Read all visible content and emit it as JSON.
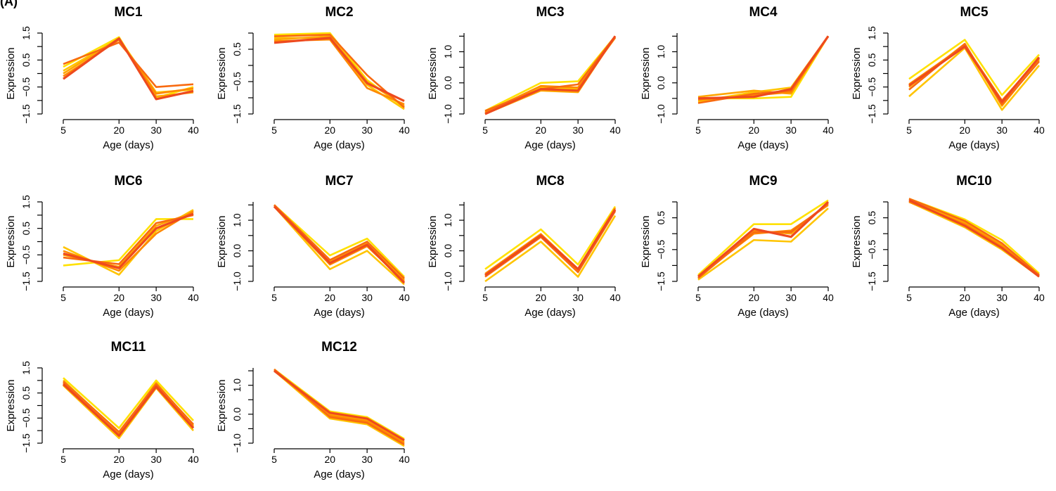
{
  "panel_label": "(A)",
  "line_colors": [
    "#FFE100",
    "#FFC400",
    "#FFA600",
    "#FF8800",
    "#F86A10",
    "#EE4A1E",
    "#E52D28"
  ],
  "axis_color": "#000000",
  "chart_data": [
    {
      "type": "line",
      "title": "MC1",
      "xlabel": "Age (days)",
      "ylabel": "Expression",
      "x": [
        5,
        20,
        30,
        40
      ],
      "xticks": [
        5,
        20,
        30,
        40
      ],
      "xlim": [
        5,
        40
      ],
      "ylim": [
        -1.5,
        1.5
      ],
      "yticks": [
        -1.5,
        -0.5,
        0.5,
        1.5
      ],
      "ytick_labels": [
        "−1.5",
        "−0.5",
        "0.5",
        "1.5"
      ],
      "series": [
        {
          "values": [
            0.25,
            1.35,
            -0.9,
            -0.5
          ]
        },
        {
          "values": [
            0.1,
            1.3,
            -0.7,
            -0.6
          ]
        },
        {
          "values": [
            0.0,
            1.3,
            -0.85,
            -0.7
          ]
        },
        {
          "values": [
            -0.1,
            1.25,
            -0.75,
            -0.55
          ]
        },
        {
          "values": [
            0.35,
            1.15,
            -0.5,
            -0.4
          ]
        },
        {
          "values": [
            -0.2,
            1.3,
            -0.95,
            -0.65
          ]
        }
      ]
    },
    {
      "type": "line",
      "title": "MC2",
      "xlabel": "Age (days)",
      "ylabel": "Expression",
      "x": [
        5,
        20,
        30,
        40
      ],
      "xticks": [
        5,
        20,
        30,
        40
      ],
      "xlim": [
        5,
        40
      ],
      "ylim": [
        -1.5,
        1.0
      ],
      "yticks": [
        -1.5,
        -0.5,
        0.5
      ],
      "ytick_labels": [
        "−1.5",
        "−0.5",
        "0.5"
      ],
      "series": [
        {
          "values": [
            0.95,
            1.0,
            -0.45,
            -1.3
          ]
        },
        {
          "values": [
            0.85,
            0.85,
            -0.6,
            -1.35
          ]
        },
        {
          "values": [
            0.8,
            0.9,
            -0.5,
            -1.25
          ]
        },
        {
          "values": [
            0.75,
            0.8,
            -0.7,
            -1.2
          ]
        },
        {
          "values": [
            0.9,
            0.95,
            -0.3,
            -1.3
          ]
        },
        {
          "values": [
            0.7,
            0.85,
            -0.55,
            -1.1
          ]
        }
      ]
    },
    {
      "type": "line",
      "title": "MC3",
      "xlabel": "Age (days)",
      "ylabel": "Expression",
      "x": [
        5,
        20,
        30,
        40
      ],
      "xticks": [
        5,
        20,
        30,
        40
      ],
      "xlim": [
        5,
        40
      ],
      "ylim": [
        -1.0,
        1.6
      ],
      "yticks": [
        -1.0,
        0.0,
        1.0
      ],
      "ytick_labels": [
        "−1.0",
        "0.0",
        "1.0"
      ],
      "series": [
        {
          "values": [
            -0.9,
            0.0,
            0.05,
            1.5
          ]
        },
        {
          "values": [
            -0.95,
            -0.15,
            -0.2,
            1.45
          ]
        },
        {
          "values": [
            -1.0,
            -0.25,
            -0.3,
            1.5
          ]
        },
        {
          "values": [
            -0.95,
            -0.1,
            -0.15,
            1.45
          ]
        },
        {
          "values": [
            -0.9,
            -0.2,
            -0.05,
            1.5
          ]
        },
        {
          "values": [
            -1.0,
            -0.2,
            -0.25,
            1.5
          ]
        }
      ]
    },
    {
      "type": "line",
      "title": "MC4",
      "xlabel": "Age (days)",
      "ylabel": "Expression",
      "x": [
        5,
        20,
        30,
        40
      ],
      "xticks": [
        5,
        20,
        30,
        40
      ],
      "xlim": [
        5,
        40
      ],
      "ylim": [
        -1.0,
        1.6
      ],
      "yticks": [
        -1.0,
        0.0,
        1.0
      ],
      "ytick_labels": [
        "−1.0",
        "0.0",
        "1.0"
      ],
      "series": [
        {
          "values": [
            -0.5,
            -0.5,
            -0.45,
            1.5
          ]
        },
        {
          "values": [
            -0.6,
            -0.3,
            -0.15,
            1.5
          ]
        },
        {
          "values": [
            -0.45,
            -0.25,
            -0.35,
            1.5
          ]
        },
        {
          "values": [
            -0.55,
            -0.4,
            -0.3,
            1.5
          ]
        },
        {
          "values": [
            -0.65,
            -0.35,
            -0.25,
            1.5
          ]
        },
        {
          "values": [
            -0.5,
            -0.45,
            -0.2,
            1.5
          ]
        }
      ]
    },
    {
      "type": "line",
      "title": "MC5",
      "xlabel": "Age (days)",
      "ylabel": "Expression",
      "x": [
        5,
        20,
        30,
        40
      ],
      "xticks": [
        5,
        20,
        30,
        40
      ],
      "xlim": [
        5,
        40
      ],
      "ylim": [
        -1.5,
        1.5
      ],
      "yticks": [
        -1.5,
        -0.5,
        0.5,
        1.5
      ],
      "ytick_labels": [
        "−1.5",
        "−0.5",
        "0.5",
        "1.5"
      ],
      "series": [
        {
          "values": [
            -0.2,
            1.25,
            -0.8,
            0.7
          ]
        },
        {
          "values": [
            -0.85,
            0.95,
            -1.35,
            0.3
          ]
        },
        {
          "values": [
            -0.5,
            1.1,
            -1.2,
            0.5
          ]
        },
        {
          "values": [
            -0.4,
            1.05,
            -1.0,
            0.55
          ]
        },
        {
          "values": [
            -0.6,
            1.1,
            -1.15,
            0.45
          ]
        },
        {
          "values": [
            -0.45,
            1.0,
            -1.05,
            0.6
          ]
        }
      ]
    },
    {
      "type": "line",
      "title": "MC6",
      "xlabel": "Age (days)",
      "ylabel": "Expression",
      "x": [
        5,
        20,
        30,
        40
      ],
      "xticks": [
        5,
        20,
        30,
        40
      ],
      "xlim": [
        5,
        40
      ],
      "ylim": [
        -1.5,
        1.5
      ],
      "yticks": [
        -1.5,
        -0.5,
        0.5,
        1.5
      ],
      "ytick_labels": [
        "−1.5",
        "−0.5",
        "0.5",
        "1.5"
      ],
      "series": [
        {
          "values": [
            -0.9,
            -0.7,
            0.85,
            0.85
          ]
        },
        {
          "values": [
            -0.2,
            -1.25,
            0.4,
            1.2
          ]
        },
        {
          "values": [
            -0.5,
            -0.95,
            0.6,
            1.1
          ]
        },
        {
          "values": [
            -0.35,
            -1.1,
            0.3,
            1.15
          ]
        },
        {
          "values": [
            -0.6,
            -0.85,
            0.7,
            1.0
          ]
        },
        {
          "values": [
            -0.45,
            -1.0,
            0.5,
            1.05
          ]
        }
      ]
    },
    {
      "type": "line",
      "title": "MC7",
      "xlabel": "Age (days)",
      "ylabel": "Expression",
      "x": [
        5,
        20,
        30,
        40
      ],
      "xticks": [
        5,
        20,
        30,
        40
      ],
      "xlim": [
        5,
        40
      ],
      "ylim": [
        -1.0,
        1.6
      ],
      "yticks": [
        -1.0,
        0.0,
        1.0
      ],
      "ytick_labels": [
        "−1.0",
        "0.0",
        "1.0"
      ],
      "series": [
        {
          "values": [
            1.5,
            -0.15,
            0.4,
            -0.85
          ]
        },
        {
          "values": [
            1.45,
            -0.6,
            0.0,
            -1.1
          ]
        },
        {
          "values": [
            1.5,
            -0.35,
            0.25,
            -0.95
          ]
        },
        {
          "values": [
            1.45,
            -0.45,
            0.15,
            -1.0
          ]
        },
        {
          "values": [
            1.5,
            -0.3,
            0.3,
            -0.9
          ]
        },
        {
          "values": [
            1.45,
            -0.4,
            0.2,
            -1.05
          ]
        }
      ]
    },
    {
      "type": "line",
      "title": "MC8",
      "xlabel": "Age (days)",
      "ylabel": "Expression",
      "x": [
        5,
        20,
        30,
        40
      ],
      "xticks": [
        5,
        20,
        30,
        40
      ],
      "xlim": [
        5,
        40
      ],
      "ylim": [
        -1.0,
        1.6
      ],
      "yticks": [
        -1.0,
        0.0,
        1.0
      ],
      "ytick_labels": [
        "−1.0",
        "0.0",
        "1.0"
      ],
      "series": [
        {
          "values": [
            -0.6,
            0.7,
            -0.45,
            1.45
          ]
        },
        {
          "values": [
            -1.0,
            0.3,
            -0.85,
            1.15
          ]
        },
        {
          "values": [
            -0.8,
            0.5,
            -0.65,
            1.35
          ]
        },
        {
          "values": [
            -0.75,
            0.55,
            -0.6,
            1.4
          ]
        },
        {
          "values": [
            -0.85,
            0.45,
            -0.7,
            1.3
          ]
        },
        {
          "values": [
            -0.8,
            0.5,
            -0.6,
            1.35
          ]
        }
      ]
    },
    {
      "type": "line",
      "title": "MC9",
      "xlabel": "Age (days)",
      "ylabel": "Expression",
      "x": [
        5,
        20,
        30,
        40
      ],
      "xticks": [
        5,
        20,
        30,
        40
      ],
      "xlim": [
        5,
        40
      ],
      "ylim": [
        -1.5,
        1.0
      ],
      "yticks": [
        -1.5,
        -0.5,
        0.5
      ],
      "ytick_labels": [
        "−1.5",
        "−0.5",
        "0.5"
      ],
      "series": [
        {
          "values": [
            -1.3,
            0.3,
            0.3,
            1.05
          ]
        },
        {
          "values": [
            -1.45,
            -0.2,
            -0.25,
            0.8
          ]
        },
        {
          "values": [
            -1.4,
            0.1,
            0.0,
            0.95
          ]
        },
        {
          "values": [
            -1.35,
            0.0,
            0.1,
            0.9
          ]
        },
        {
          "values": [
            -1.4,
            0.05,
            0.05,
            0.95
          ]
        },
        {
          "values": [
            -1.35,
            0.15,
            -0.1,
            1.0
          ]
        }
      ]
    },
    {
      "type": "line",
      "title": "MC10",
      "xlabel": "Age (days)",
      "ylabel": "Expression",
      "x": [
        5,
        20,
        30,
        40
      ],
      "xticks": [
        5,
        20,
        30,
        40
      ],
      "xlim": [
        5,
        40
      ],
      "ylim": [
        -1.5,
        1.0
      ],
      "yticks": [
        -1.5,
        -0.5,
        0.5
      ],
      "ytick_labels": [
        "−1.5",
        "−0.5",
        "0.5"
      ],
      "series": [
        {
          "values": [
            1.1,
            0.45,
            -0.2,
            -1.25
          ]
        },
        {
          "values": [
            1.0,
            0.2,
            -0.5,
            -1.35
          ]
        },
        {
          "values": [
            1.05,
            0.35,
            -0.35,
            -1.3
          ]
        },
        {
          "values": [
            1.0,
            0.3,
            -0.4,
            -1.3
          ]
        },
        {
          "values": [
            1.1,
            0.4,
            -0.3,
            -1.3
          ]
        },
        {
          "values": [
            1.05,
            0.25,
            -0.45,
            -1.35
          ]
        }
      ]
    },
    {
      "type": "line",
      "title": "MC11",
      "xlabel": "Age (days)",
      "ylabel": "Expression",
      "x": [
        5,
        20,
        30,
        40
      ],
      "xticks": [
        5,
        20,
        30,
        40
      ],
      "xlim": [
        5,
        40
      ],
      "ylim": [
        -1.5,
        1.5
      ],
      "yticks": [
        -1.5,
        -0.5,
        0.5,
        1.5
      ],
      "ytick_labels": [
        "−1.5",
        "−0.5",
        "0.5",
        "1.5"
      ],
      "series": [
        {
          "values": [
            1.1,
            -0.9,
            1.0,
            -0.6
          ]
        },
        {
          "values": [
            0.8,
            -1.3,
            0.7,
            -1.0
          ]
        },
        {
          "values": [
            1.0,
            -1.1,
            0.9,
            -0.8
          ]
        },
        {
          "values": [
            0.9,
            -1.15,
            0.8,
            -0.85
          ]
        },
        {
          "values": [
            0.95,
            -1.05,
            0.85,
            -0.75
          ]
        },
        {
          "values": [
            0.85,
            -1.2,
            0.75,
            -0.9
          ]
        }
      ]
    },
    {
      "type": "line",
      "title": "MC12",
      "xlabel": "Age (days)",
      "ylabel": "Expression",
      "x": [
        5,
        20,
        30,
        40
      ],
      "xticks": [
        5,
        20,
        30,
        40
      ],
      "xlim": [
        5,
        40
      ],
      "ylim": [
        -1.0,
        1.6
      ],
      "yticks": [
        -1.0,
        0.0,
        1.0
      ],
      "ytick_labels": [
        "−1.0",
        "0.0",
        "1.0"
      ],
      "series": [
        {
          "values": [
            1.55,
            0.1,
            -0.1,
            -0.85
          ]
        },
        {
          "values": [
            1.5,
            -0.15,
            -0.35,
            -1.1
          ]
        },
        {
          "values": [
            1.55,
            0.0,
            -0.2,
            -0.95
          ]
        },
        {
          "values": [
            1.5,
            -0.05,
            -0.25,
            -1.0
          ]
        },
        {
          "values": [
            1.55,
            -0.1,
            -0.3,
            -1.05
          ]
        },
        {
          "values": [
            1.5,
            0.05,
            -0.15,
            -0.9
          ]
        }
      ]
    }
  ]
}
